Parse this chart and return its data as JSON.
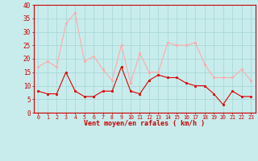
{
  "x": [
    0,
    1,
    2,
    3,
    4,
    5,
    6,
    7,
    8,
    9,
    10,
    11,
    12,
    13,
    14,
    15,
    16,
    17,
    18,
    19,
    20,
    21,
    22,
    23
  ],
  "mean_wind": [
    8,
    7,
    7,
    15,
    8,
    6,
    6,
    8,
    8,
    17,
    8,
    7,
    12,
    14,
    13,
    13,
    11,
    10,
    10,
    7,
    3,
    8,
    6,
    6
  ],
  "gust_wind": [
    17,
    19,
    17,
    33,
    37,
    19,
    21,
    16,
    12,
    25,
    11,
    22,
    15,
    15,
    26,
    25,
    25,
    26,
    18,
    13,
    13,
    13,
    16,
    12
  ],
  "xlim": [
    -0.5,
    23.5
  ],
  "ylim": [
    0,
    40
  ],
  "yticks": [
    0,
    5,
    10,
    15,
    20,
    25,
    30,
    35,
    40
  ],
  "xtick_labels": [
    "0",
    "1",
    "2",
    "3",
    "4",
    "5",
    "6",
    "7",
    "8",
    "9",
    "10",
    "11",
    "12",
    "13",
    "14",
    "15",
    "16",
    "17",
    "18",
    "19",
    "20",
    "21",
    "22",
    "23"
  ],
  "xlabel": "Vent moyen/en rafales ( km/h )",
  "mean_color": "#dd0000",
  "gust_color": "#ffaaaa",
  "bg_color": "#c8ecec",
  "grid_color": "#aad8d8",
  "axis_color": "#cc0000",
  "xlabel_color": "#cc0000"
}
